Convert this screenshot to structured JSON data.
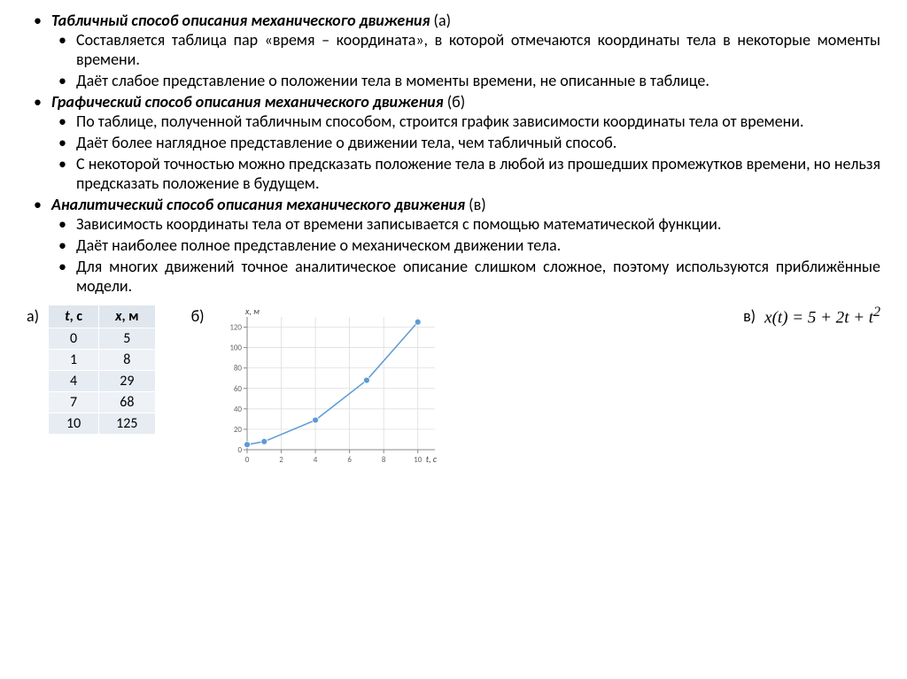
{
  "sections": [
    {
      "title": "Табличный способ  описания механического движения",
      "label": "(а)",
      "items": [
        "Составляется таблица пар «время – координата», в которой отмечаются координаты тела в некоторые моменты времени.",
        "Даёт слабое представление  о положении тела в моменты времени, не описанные в таблице."
      ]
    },
    {
      "title": "Графический способ описания механического движения",
      "label": "(б)",
      "items": [
        "По таблице, полученной табличным способом, строится график зависимости координаты тела от времени.",
        "Даёт более наглядное представление о движении тела, чем табличный способ.",
        "С некоторой точностью можно предсказать положение тела в любой из прошедших промежутков времени, но нельзя предсказать положение в будущем."
      ]
    },
    {
      "title": "Аналитический способ описания механического движения",
      "label": "(в)",
      "items": [
        "Зависимость координаты тела от времени записывается с помощью математической функции.",
        "Даёт наиболее полное представление о механическом движении тела.",
        "Для многих движений точное аналитическое описание слишком сложное, поэтому используются приближённые модели."
      ]
    }
  ],
  "panelA": {
    "label": "а)",
    "table": {
      "headers": [
        "t, с",
        "x, м"
      ],
      "header_style": {
        "t_italic": true,
        "x_italic": true
      },
      "rows": [
        [
          "0",
          "5"
        ],
        [
          "1",
          "8"
        ],
        [
          "4",
          "29"
        ],
        [
          "7",
          "68"
        ],
        [
          "10",
          "125"
        ]
      ],
      "header_bg": "#e0e6ed",
      "row_bg_odd": "#eef2f6",
      "row_bg_even": "#e6ecf2"
    }
  },
  "panelB": {
    "label": "б)",
    "chart": {
      "type": "line-scatter",
      "x_label": "t, с",
      "y_label": "x, м",
      "xlim": [
        0,
        11
      ],
      "ylim": [
        0,
        130
      ],
      "xticks": [
        0,
        2,
        4,
        6,
        8,
        10
      ],
      "yticks": [
        0,
        20,
        40,
        60,
        80,
        100,
        120
      ],
      "points": [
        {
          "x": 0,
          "y": 5
        },
        {
          "x": 1,
          "y": 8
        },
        {
          "x": 4,
          "y": 29
        },
        {
          "x": 7,
          "y": 68
        },
        {
          "x": 10,
          "y": 125
        }
      ],
      "line_color": "#5b9bd5",
      "marker_color": "#5b9bd5",
      "marker_size": 3.5,
      "line_width": 1.5,
      "axis_color": "#888888",
      "grid_color": "#d9d9d9",
      "tick_font_size": 9,
      "label_font_size": 10,
      "background": "#ffffff"
    }
  },
  "panelC": {
    "label": "в)",
    "formula_html": "<i>x</i>(<i>t</i>) = 5 + 2<i>t</i> + <i>t</i><sup>2</sup>"
  }
}
